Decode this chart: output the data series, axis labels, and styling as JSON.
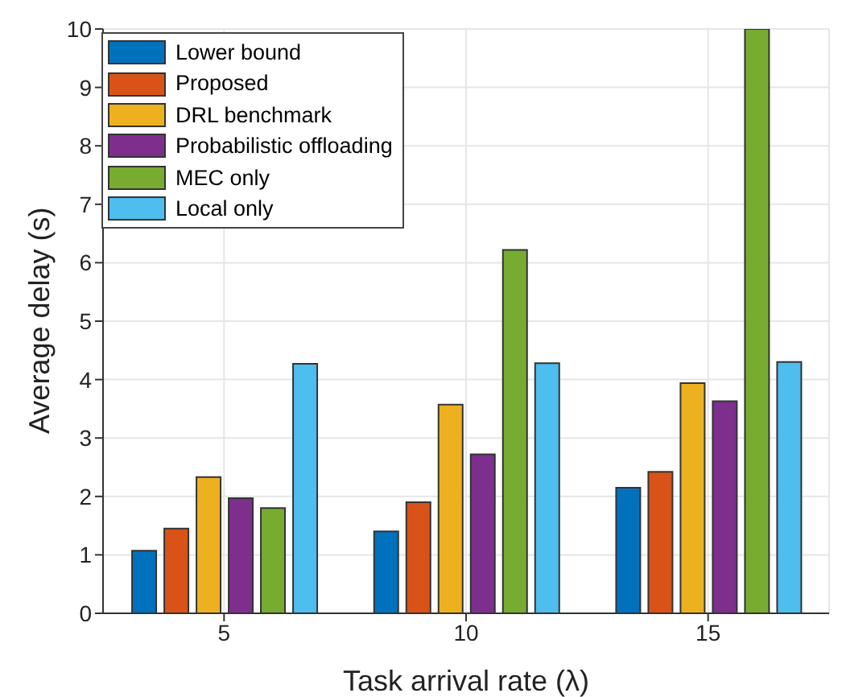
{
  "chart_data": {
    "type": "bar",
    "xlabel": "Task arrival rate (λ)",
    "ylabel": "Average delay (s)",
    "categories": [
      "5",
      "10",
      "15"
    ],
    "series": [
      {
        "name": "Lower bound",
        "color": "#0072bd",
        "values": [
          1.07,
          1.4,
          2.15
        ]
      },
      {
        "name": "Proposed",
        "color": "#d95319",
        "values": [
          1.45,
          1.9,
          2.42
        ]
      },
      {
        "name": "DRL benchmark",
        "color": "#edb120",
        "values": [
          2.33,
          3.57,
          3.94
        ]
      },
      {
        "name": "Probabilistic offloading",
        "color": "#7e2f8e",
        "values": [
          1.97,
          2.72,
          3.63
        ]
      },
      {
        "name": "MEC only",
        "color": "#77ac30",
        "values": [
          1.8,
          6.22,
          10
        ]
      },
      {
        "name": "Local only",
        "color": "#4dbeee",
        "values": [
          4.27,
          4.28,
          4.3
        ]
      }
    ],
    "ylim": [
      0,
      10
    ],
    "yticks": [
      0,
      1,
      2,
      3,
      4,
      5,
      6,
      7,
      8,
      9,
      10
    ],
    "grid": true,
    "legend": "top left"
  }
}
